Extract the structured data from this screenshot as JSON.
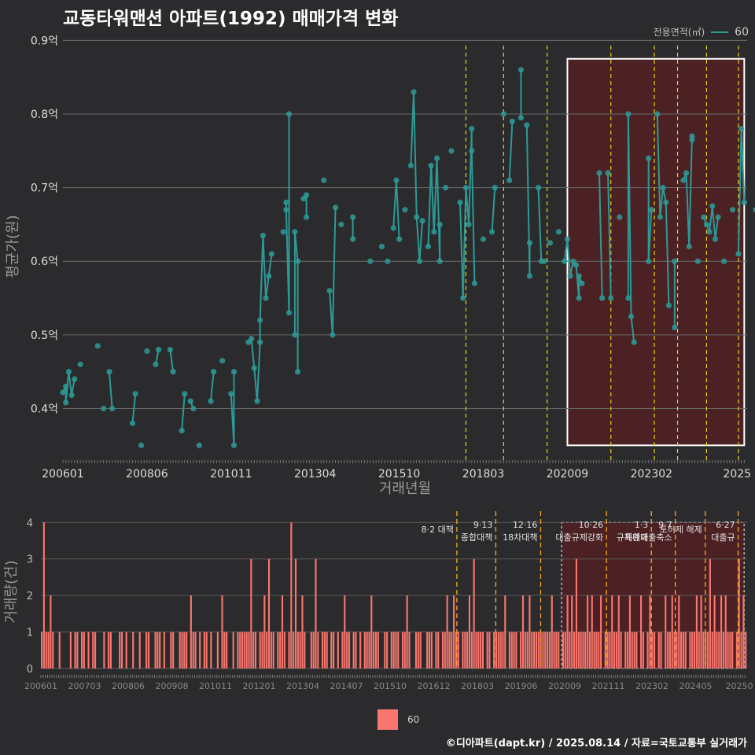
{
  "title": "교동타워맨션 아파트(1992) 매매가격 변화",
  "legend_top": {
    "title": "전용면적(㎡)",
    "series": "60",
    "color": "#2d9a96"
  },
  "legend_bottom": {
    "series": "60",
    "color": "#f8766d"
  },
  "caption": "©디아파트(dapt.kr) / 2025.08.14 / 자료=국토교통부 실거래가",
  "chart_data": [
    {
      "type": "line",
      "xlabel": "거래년월",
      "ylabel": "평균가(원)",
      "x_tick_labels": [
        "200601",
        "200806",
        "201011",
        "201304",
        "201510",
        "201803",
        "202009",
        "202302",
        "2025"
      ],
      "y_tick_labels": [
        "0.4억",
        "0.5억",
        "0.6억",
        "0.7억",
        "0.8억",
        "0.9억"
      ],
      "y_ticks": [
        0.4,
        0.5,
        0.6,
        0.7,
        0.8,
        0.9
      ],
      "ylim": [
        0.33,
        0.91
      ],
      "xlim": [
        "2006-01",
        "2025-08"
      ],
      "policy_lines": [
        "2017-08",
        "2018-09",
        "2019-12",
        "2021-10",
        "2023-01",
        "2023-09",
        "2024-07",
        "2025-06"
      ],
      "highlight_box": {
        "from": "2020-07",
        "to": "2025-08",
        "ymin": 0.35,
        "ymax": 0.875
      },
      "series": [
        {
          "name": "60",
          "points": [
            [
              "2006-01",
              0.422
            ],
            [
              "2006-02",
              0.43
            ],
            [
              "2006-02",
              0.408
            ],
            [
              "2006-03",
              0.45
            ],
            [
              "2006-04",
              0.418
            ],
            [
              "2006-05",
              0.44
            ],
            [
              "2006-07",
              0.46
            ],
            [
              "2007-01",
              0.485
            ],
            [
              "2007-03",
              0.4
            ],
            [
              "2007-05",
              0.45
            ],
            [
              "2007-06",
              0.4
            ],
            [
              "2008-01",
              0.38
            ],
            [
              "2008-02",
              0.42
            ],
            [
              "2008-04",
              0.35
            ],
            [
              "2008-06",
              0.478
            ],
            [
              "2008-09",
              0.46
            ],
            [
              "2008-10",
              0.48
            ],
            [
              "2009-02",
              0.48
            ],
            [
              "2009-03",
              0.45
            ],
            [
              "2009-06",
              0.37
            ],
            [
              "2009-07",
              0.42
            ],
            [
              "2009-09",
              0.41
            ],
            [
              "2009-10",
              0.4
            ],
            [
              "2009-12",
              0.35
            ],
            [
              "2010-04",
              0.41
            ],
            [
              "2010-05",
              0.45
            ],
            [
              "2010-08",
              0.465
            ],
            [
              "2010-11",
              0.42
            ],
            [
              "2010-12",
              0.35
            ],
            [
              "2010-12",
              0.45
            ],
            [
              "2011-05",
              0.49
            ],
            [
              "2011-06",
              0.495
            ],
            [
              "2011-07",
              0.455
            ],
            [
              "2011-08",
              0.41
            ],
            [
              "2011-09",
              0.49
            ],
            [
              "2011-09",
              0.52
            ],
            [
              "2011-10",
              0.635
            ],
            [
              "2011-11",
              0.55
            ],
            [
              "2011-12",
              0.58
            ],
            [
              "2012-01",
              0.61
            ],
            [
              "2012-05",
              0.64
            ],
            [
              "2012-07",
              0.8
            ],
            [
              "2012-07",
              0.53
            ],
            [
              "2012-06",
              0.67
            ],
            [
              "2012-06",
              0.68
            ],
            [
              "2012-09",
              0.5
            ],
            [
              "2012-09",
              0.64
            ],
            [
              "2012-10",
              0.6
            ],
            [
              "2012-10",
              0.45
            ],
            [
              "2012-12",
              0.685
            ],
            [
              "2013-01",
              0.69
            ],
            [
              "2013-01",
              0.66
            ],
            [
              "2013-07",
              0.71
            ],
            [
              "2013-09",
              0.56
            ],
            [
              "2013-10",
              0.5
            ],
            [
              "2013-11",
              0.673
            ],
            [
              "2014-01",
              0.65
            ],
            [
              "2014-05",
              0.63
            ],
            [
              "2014-05",
              0.66
            ],
            [
              "2014-11",
              0.6
            ],
            [
              "2015-03",
              0.62
            ],
            [
              "2015-05",
              0.6
            ],
            [
              "2015-07",
              0.645
            ],
            [
              "2015-08",
              0.71
            ],
            [
              "2015-09",
              0.63
            ],
            [
              "2015-11",
              0.67
            ],
            [
              "2016-01",
              0.73
            ],
            [
              "2016-02",
              0.83
            ],
            [
              "2016-03",
              0.66
            ],
            [
              "2016-04",
              0.6
            ],
            [
              "2016-05",
              0.655
            ],
            [
              "2016-07",
              0.62
            ],
            [
              "2016-08",
              0.73
            ],
            [
              "2016-09",
              0.64
            ],
            [
              "2016-10",
              0.74
            ],
            [
              "2016-11",
              0.6
            ],
            [
              "2016-11",
              0.65
            ],
            [
              "2017-01",
              0.7
            ],
            [
              "2017-03",
              0.75
            ],
            [
              "2017-06",
              0.68
            ],
            [
              "2017-07",
              0.55
            ],
            [
              "2017-08",
              0.7
            ],
            [
              "2017-09",
              0.65
            ],
            [
              "2017-10",
              0.78
            ],
            [
              "2017-10",
              0.75
            ],
            [
              "2017-11",
              0.57
            ],
            [
              "2018-02",
              0.63
            ],
            [
              "2018-05",
              0.64
            ],
            [
              "2018-06",
              0.7
            ],
            [
              "2018-09",
              0.8
            ],
            [
              "2018-11",
              0.71
            ],
            [
              "2018-12",
              0.79
            ],
            [
              "2019-03",
              0.86
            ],
            [
              "2019-03",
              0.795
            ],
            [
              "2019-05",
              0.785
            ],
            [
              "2019-06",
              0.58
            ],
            [
              "2019-06",
              0.625
            ],
            [
              "2019-09",
              0.7
            ],
            [
              "2019-10",
              0.6
            ],
            [
              "2019-11",
              0.6
            ],
            [
              "2020-01",
              0.625
            ],
            [
              "2020-04",
              0.64
            ],
            [
              "2020-06",
              0.6
            ],
            [
              "2020-07",
              0.63
            ],
            [
              "2020-08",
              0.58
            ],
            [
              "2020-09",
              0.6
            ],
            [
              "2020-10",
              0.595
            ],
            [
              "2020-11",
              0.55
            ],
            [
              "2020-11",
              0.58
            ],
            [
              "2020-12",
              0.57
            ],
            [
              "2021-06",
              0.72
            ],
            [
              "2021-07",
              0.55
            ],
            [
              "2021-09",
              0.72
            ],
            [
              "2021-10",
              0.55
            ],
            [
              "2022-01",
              0.66
            ],
            [
              "2022-04",
              0.55
            ],
            [
              "2022-04",
              0.8
            ],
            [
              "2022-05",
              0.525
            ],
            [
              "2022-06",
              0.49
            ],
            [
              "2022-11",
              0.74
            ],
            [
              "2022-11",
              0.6
            ],
            [
              "2022-12",
              0.67
            ],
            [
              "2023-02",
              0.8
            ],
            [
              "2023-03",
              0.66
            ],
            [
              "2023-04",
              0.7
            ],
            [
              "2023-05",
              0.68
            ],
            [
              "2023-06",
              0.54
            ],
            [
              "2023-08",
              0.51
            ],
            [
              "2023-08",
              0.6
            ],
            [
              "2023-11",
              0.71
            ],
            [
              "2023-12",
              0.72
            ],
            [
              "2024-01",
              0.62
            ],
            [
              "2024-02",
              0.77
            ],
            [
              "2024-02",
              0.765
            ],
            [
              "2024-04",
              0.6
            ],
            [
              "2024-06",
              0.66
            ],
            [
              "2024-07",
              0.65
            ],
            [
              "2024-08",
              0.64
            ],
            [
              "2024-09",
              0.675
            ],
            [
              "2024-10",
              0.63
            ],
            [
              "2024-11",
              0.66
            ],
            [
              "2025-01",
              0.6
            ],
            [
              "2025-04",
              0.67
            ],
            [
              "2025-06",
              0.61
            ],
            [
              "2025-07",
              0.78
            ],
            [
              "2025-08",
              0.68
            ],
            [
              "2025-12",
              0.67
            ]
          ]
        }
      ]
    },
    {
      "type": "bar",
      "xlabel": "",
      "ylabel": "거래량(건)",
      "x_tick_labels": [
        "200601",
        "200703",
        "200806",
        "200908",
        "201011",
        "201201",
        "201304",
        "201407",
        "201510",
        "201612",
        "201803",
        "201906",
        "202009",
        "202111",
        "202302",
        "202405",
        "20250"
      ],
      "y_tick_labels": [
        "0",
        "1",
        "2",
        "3",
        "4"
      ],
      "ylim": [
        0,
        4.2
      ],
      "annotations": [
        {
          "date": "2017-08",
          "lines": [
            "8·2 대책"
          ]
        },
        {
          "date": "2018-09",
          "lines": [
            "9·13",
            "종합대책"
          ]
        },
        {
          "date": "2019-12",
          "lines": [
            "12·16",
            "18차대책"
          ]
        },
        {
          "date": "2021-10",
          "lines": [
            "10·26",
            "대출규제강화"
          ]
        },
        {
          "date": "2023-01",
          "lines": [
            "1·3",
            "규제완화"
          ]
        },
        {
          "date": "2023-09",
          "lines": [
            "9·7",
            "특례대출축소"
          ]
        },
        {
          "date": "2024-07",
          "lines": [
            "토허제 해제"
          ]
        },
        {
          "date": "2025-06",
          "lines": [
            "6·27",
            "대출규"
          ]
        }
      ],
      "series": [
        {
          "name": "60",
          "values": [
            1,
            4,
            1,
            1,
            2,
            1,
            0,
            0,
            1,
            0,
            0,
            0,
            0,
            1,
            0,
            1,
            1,
            0,
            1,
            1,
            0,
            1,
            0,
            1,
            1,
            0,
            0,
            0,
            1,
            0,
            1,
            1,
            0,
            0,
            0,
            1,
            1,
            0,
            1,
            0,
            0,
            1,
            0,
            0,
            1,
            0,
            0,
            1,
            1,
            0,
            0,
            1,
            1,
            1,
            0,
            1,
            0,
            0,
            1,
            1,
            0,
            0,
            1,
            1,
            1,
            1,
            0,
            2,
            1,
            1,
            0,
            1,
            0,
            1,
            1,
            0,
            1,
            0,
            0,
            1,
            0,
            2,
            1,
            1,
            0,
            0,
            1,
            0,
            1,
            1,
            1,
            1,
            1,
            1,
            3,
            1,
            1,
            0,
            1,
            1,
            2,
            1,
            3,
            1,
            1,
            0,
            1,
            1,
            2,
            1,
            0,
            1,
            4,
            1,
            3,
            1,
            1,
            2,
            1,
            0,
            0,
            1,
            1,
            3,
            1,
            0,
            1,
            1,
            1,
            0,
            1,
            1,
            0,
            1,
            0,
            1,
            2,
            1,
            1,
            0,
            1,
            1,
            0,
            1,
            0,
            1,
            1,
            1,
            2,
            1,
            1,
            1,
            0,
            0,
            1,
            1,
            0,
            1,
            1,
            1,
            1,
            0,
            1,
            1,
            2,
            1,
            0,
            0,
            1,
            1,
            1,
            0,
            0,
            1,
            1,
            1,
            0,
            1,
            1,
            0,
            1,
            1,
            2,
            1,
            1,
            2,
            1,
            1,
            0,
            1,
            1,
            1,
            2,
            1,
            3,
            1,
            1,
            1,
            1,
            0,
            1,
            1,
            0,
            1,
            1,
            1,
            1,
            1,
            2,
            0,
            1,
            1,
            1,
            1,
            0,
            1,
            2,
            1,
            1,
            2,
            1,
            1,
            1,
            1,
            1,
            1,
            1,
            1,
            1,
            2,
            1,
            1,
            1,
            0,
            1,
            1,
            2,
            1,
            2,
            1,
            3,
            1,
            1,
            1,
            1,
            2,
            1,
            2,
            1,
            1,
            1,
            2,
            0,
            1,
            1,
            1,
            2,
            1,
            1,
            2,
            1,
            0,
            1,
            1,
            2,
            1,
            1,
            1,
            0,
            2,
            1,
            0,
            1,
            2,
            1,
            1,
            0,
            1,
            1,
            0,
            2,
            1,
            1,
            2,
            1,
            1,
            2,
            1,
            1,
            1,
            0,
            1,
            1,
            1,
            2,
            1,
            2,
            1,
            1,
            1,
            3,
            1,
            2,
            1,
            1,
            2,
            1,
            2,
            1,
            1,
            1,
            0,
            1,
            3,
            1,
            2,
            1
          ]
        }
      ]
    }
  ]
}
